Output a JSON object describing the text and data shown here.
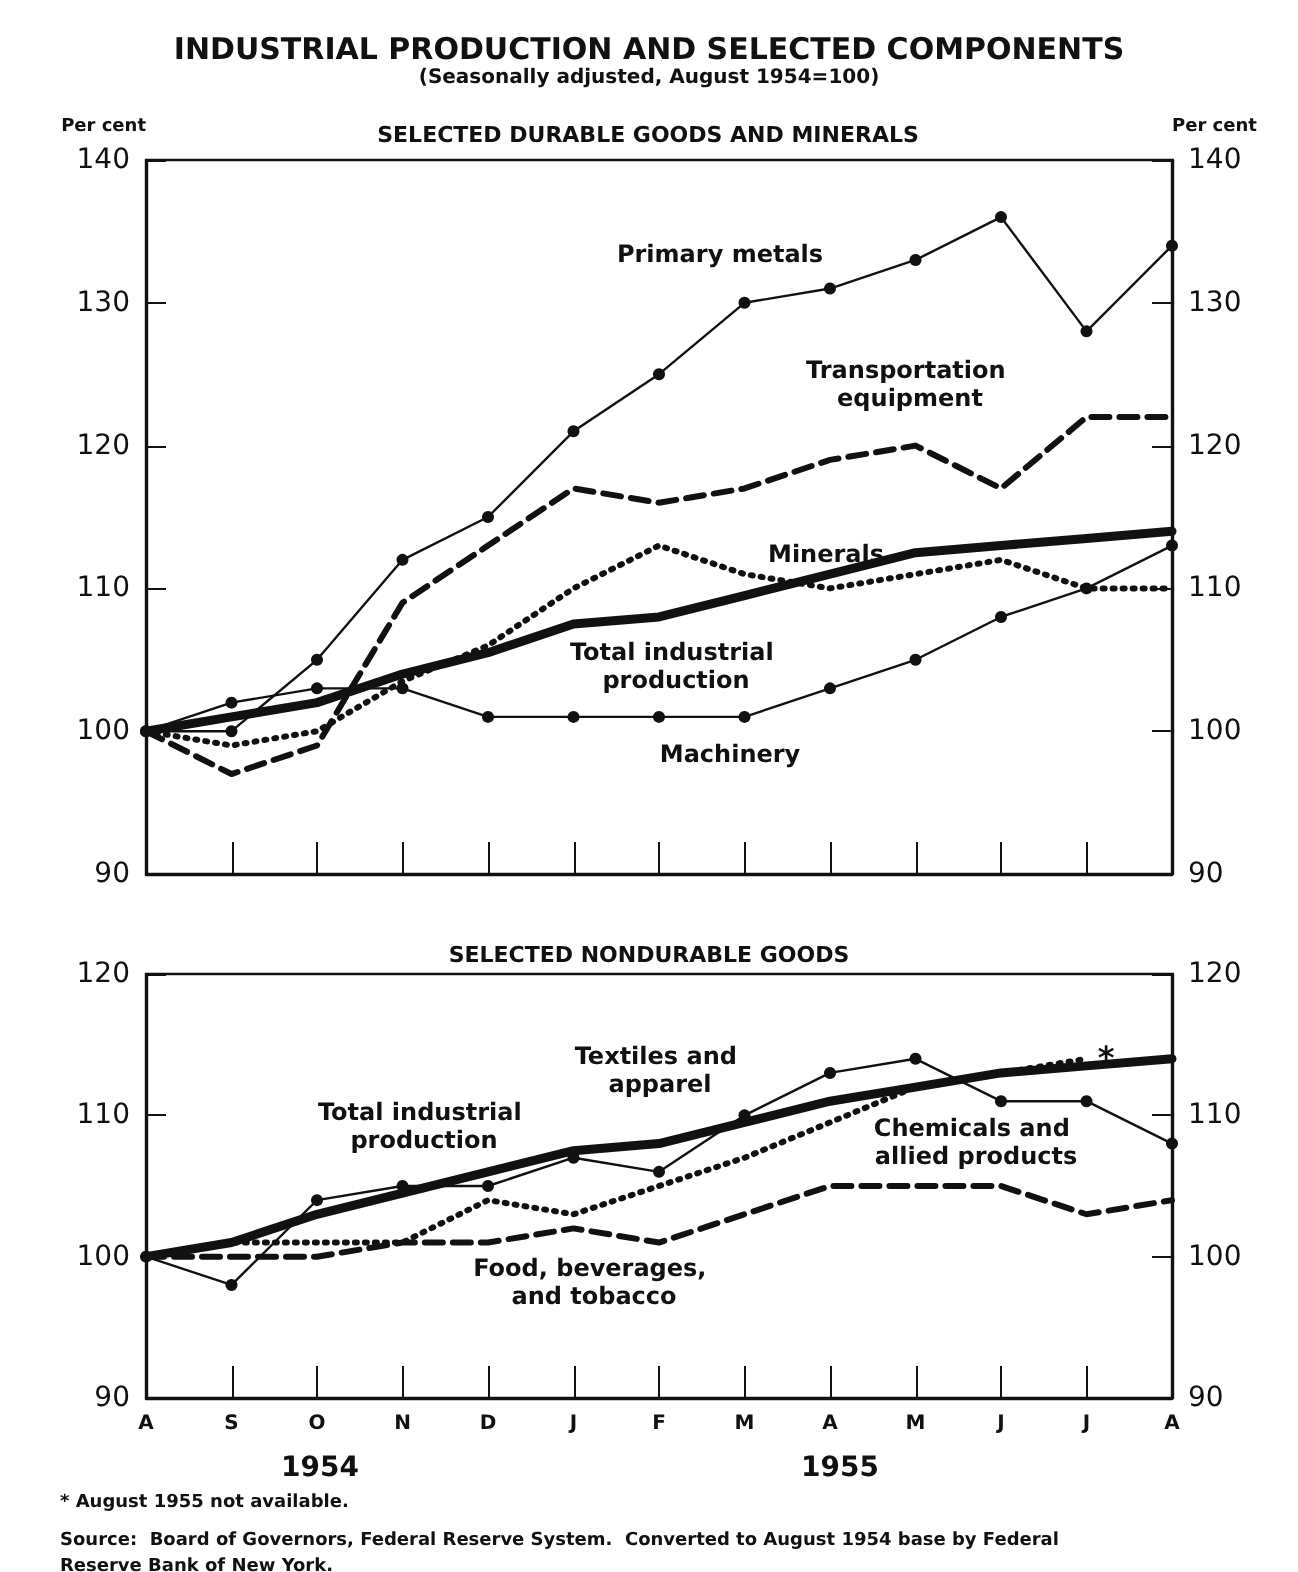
{
  "chart_data": [
    {
      "type": "line",
      "title": "INDUSTRIAL PRODUCTION AND SELECTED COMPONENTS",
      "subtitle": "(Seasonally adjusted, August 1954=100)",
      "annotations": [
        "SELECTED DURABLE GOODS AND MINERALS"
      ],
      "ylabel": "Per cent",
      "y2label": "Per cent",
      "categories": [
        "A",
        "S",
        "O",
        "N",
        "D",
        "J",
        "F",
        "M",
        "A",
        "M",
        "J",
        "J",
        "A"
      ],
      "series": [
        {
          "name": "Primary metals",
          "color": "#111111",
          "marker": "circle",
          "line_style": "solid",
          "values": [
            100,
            100,
            105,
            112,
            115,
            121,
            125,
            130,
            131,
            133,
            136,
            128,
            134
          ]
        },
        {
          "name": "Total industrial production",
          "color": "#111111",
          "marker": "none",
          "line_style": "solid",
          "values": [
            100,
            101,
            102,
            104,
            105.5,
            107.5,
            108,
            109.5,
            111,
            112.5,
            113,
            113.5,
            114
          ]
        },
        {
          "name": "Transportation equipment",
          "color": "#111111",
          "marker": "none",
          "line_style": "dashed",
          "values": [
            100,
            97,
            99,
            109,
            113,
            117,
            116,
            117,
            119,
            120,
            117,
            122,
            122
          ]
        },
        {
          "name": "Minerals",
          "color": "#111111",
          "marker": "none",
          "line_style": "dotted",
          "values": [
            100,
            99,
            100,
            103.5,
            106,
            110,
            113,
            111,
            110,
            111,
            112,
            110,
            110
          ]
        },
        {
          "name": "Machinery",
          "color": "#111111",
          "marker": "circle",
          "line_style": "solid",
          "values": [
            100,
            102,
            103,
            103,
            101,
            101,
            101,
            101,
            103,
            105,
            108,
            110,
            113
          ]
        }
      ],
      "ylim": [
        90,
        140
      ],
      "yticks": [
        90,
        100,
        110,
        120,
        130,
        140
      ],
      "y2lim": [
        90,
        140
      ],
      "y2ticks": [
        90,
        100,
        110,
        120,
        130,
        140
      ],
      "tick_labels": "y",
      "grid": false,
      "legend": false
    },
    {
      "type": "line",
      "title": "SELECTED NONDURABLE GOODS",
      "annotations": [
        "*",
        "1954",
        "1955",
        "* August 1955 not available.",
        "Source:  Board of Governors, Federal Reserve System.  Converted to August 1954 base by Federal Reserve Bank of New York."
      ],
      "categories": [
        "A",
        "S",
        "O",
        "N",
        "D",
        "J",
        "F",
        "M",
        "A",
        "M",
        "J",
        "J",
        "A"
      ],
      "series": [
        {
          "name": "Textiles and apparel",
          "color": "#111111",
          "marker": "circle",
          "line_style": "solid",
          "values": [
            100,
            98,
            104,
            105,
            105,
            107,
            106,
            110,
            113,
            114,
            111,
            111,
            108
          ]
        },
        {
          "name": "Total industrial production",
          "color": "#111111",
          "marker": "none",
          "line_style": "solid",
          "values": [
            100,
            101,
            103,
            104.5,
            106,
            107.5,
            108,
            109.5,
            111,
            112,
            113,
            113.5,
            114
          ]
        },
        {
          "name": "Food, beverages, and tobacco",
          "color": "#111111",
          "marker": "none",
          "line_style": "dashed",
          "values": [
            100,
            100,
            100,
            101,
            101,
            102,
            101,
            103,
            105,
            105,
            105,
            103,
            104
          ]
        },
        {
          "name": "Chemicals and allied products",
          "color": "#111111",
          "marker": "none",
          "line_style": "dotted",
          "values": [
            100,
            101,
            101,
            101,
            104,
            103,
            105,
            107,
            109.5,
            112,
            113,
            114,
            null
          ]
        }
      ],
      "ylim": [
        90,
        120
      ],
      "yticks": [
        90,
        100,
        110,
        120
      ],
      "y2lim": [
        90,
        120
      ],
      "y2ticks": [
        90,
        100,
        110,
        120
      ],
      "grid": false,
      "legend": false
    }
  ]
}
